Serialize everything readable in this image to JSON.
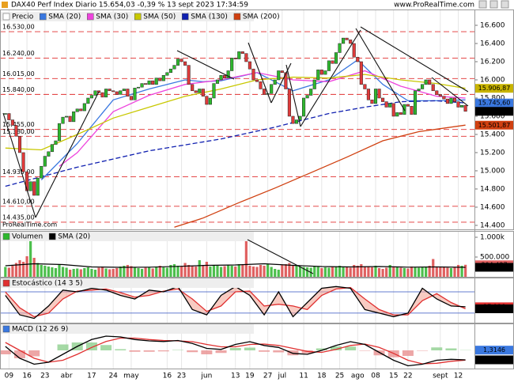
{
  "header": {
    "title": "DAX40 Perf Index Diario 15.654,03 -0,39 % 13 sept 2023 17:34:59",
    "site": "www.ProRealTime.com"
  },
  "chart_data": [
    {
      "type": "candlestick",
      "watermark": "ProRealTime.com",
      "xlim": [
        -1.5,
        130.5
      ],
      "xticks": [
        {
          "value": 1,
          "label": "09"
        },
        {
          "value": 6,
          "label": "16"
        },
        {
          "value": 11,
          "label": "23"
        },
        {
          "value": 17,
          "label": "abr"
        },
        {
          "value": 24,
          "label": "17"
        },
        {
          "value": 30,
          "label": "24"
        },
        {
          "value": 35,
          "label": "may"
        },
        {
          "value": 45,
          "label": "16"
        },
        {
          "value": 49,
          "label": "23"
        },
        {
          "value": 56,
          "label": "jun"
        },
        {
          "value": 64,
          "label": "13"
        },
        {
          "value": 68,
          "label": "19"
        },
        {
          "value": 73,
          "label": "27"
        },
        {
          "value": 77,
          "label": "jul"
        },
        {
          "value": 83,
          "label": "11"
        },
        {
          "value": 88,
          "label": "18"
        },
        {
          "value": 93,
          "label": "25"
        },
        {
          "value": 98,
          "label": "ago"
        },
        {
          "value": 103,
          "label": "08"
        },
        {
          "value": 108,
          "label": "15"
        },
        {
          "value": 112,
          "label": "22"
        },
        {
          "value": 121,
          "label": "sept"
        },
        {
          "value": 126,
          "label": "12"
        }
      ],
      "ylim": [
        14356,
        16774
      ],
      "yticks": [
        {
          "value": 16600,
          "label": "16.600"
        },
        {
          "value": 16400,
          "label": "16.400"
        },
        {
          "value": 16200,
          "label": "16.200"
        },
        {
          "value": 16000,
          "label": "16.000"
        },
        {
          "value": 15800,
          "label": "15.800"
        },
        {
          "value": 15600,
          "label": "15.600"
        },
        {
          "value": 15400,
          "label": "15.400"
        },
        {
          "value": 15200,
          "label": "15.200"
        },
        {
          "value": 15000,
          "label": "15.000"
        },
        {
          "value": 14800,
          "label": "14.800"
        },
        {
          "value": 14600,
          "label": "14.600"
        },
        {
          "value": 14400,
          "label": "14.400"
        }
      ],
      "grid": true,
      "level_color": "#e03030",
      "levels": [
        {
          "value": 16530,
          "label": "16.530,00"
        },
        {
          "value": 16240,
          "label": "16.240,00"
        },
        {
          "value": 16015,
          "label": "16.015,00"
        },
        {
          "value": 15840,
          "label": "15.840,00"
        },
        {
          "value": 15455,
          "label": "15.455,00"
        },
        {
          "value": 15380,
          "label": "15.380,00"
        },
        {
          "value": 14935,
          "label": "14.935,00"
        },
        {
          "value": 14610,
          "label": "14.610,00"
        },
        {
          "value": 14435,
          "label": "14.435,00"
        }
      ],
      "series": [
        {
          "name": "Precio",
          "color": "#ffffff",
          "up_color": "#2eb82e",
          "down_color": "#e03a3a",
          "values": [
            15630,
            15560,
            15500,
            15380,
            15200,
            14990,
            14780,
            14880,
            14730,
            14920,
            15050,
            15160,
            15210,
            15290,
            15330,
            15520,
            15590,
            15600,
            15540,
            15650,
            15680,
            15660,
            15740,
            15800,
            15830,
            15880,
            15860,
            15810,
            15900,
            15880,
            15870,
            15840,
            15880,
            15900,
            15820,
            15780,
            15910,
            15920,
            15960,
            15950,
            15990,
            15950,
            16020,
            15990,
            16050,
            16080,
            16120,
            16160,
            16230,
            16200,
            16160,
            15950,
            15880,
            15860,
            15900,
            15820,
            15730,
            15800,
            15960,
            16000,
            16050,
            16020,
            16100,
            16240,
            16230,
            16310,
            16290,
            16200,
            16120,
            16000,
            15980,
            15900,
            15840,
            15850,
            15950,
            16000,
            16100,
            16080,
            15900,
            15600,
            15520,
            15560,
            15600,
            15800,
            15830,
            15900,
            16000,
            16110,
            16060,
            16100,
            16210,
            16180,
            16300,
            16400,
            16460,
            16440,
            16400,
            16250,
            16200,
            15950,
            15900,
            15780,
            15740,
            15900,
            15800,
            15760,
            15700,
            15740,
            15600,
            15640,
            15620,
            15730,
            15710,
            15620,
            15880,
            15900,
            15950,
            16000,
            15950,
            15880,
            15840,
            15820,
            15790,
            15740,
            15800,
            15760,
            15700,
            15720,
            15654
          ]
        },
        {
          "name": "SMA (20)",
          "color": "#3a78e0",
          "x": [
            10,
            20,
            30,
            40,
            50,
            55,
            60,
            70,
            80,
            90,
            98,
            105,
            112,
            120,
            128
          ],
          "values": [
            14900,
            15300,
            15780,
            15900,
            16000,
            15980,
            15990,
            16080,
            15880,
            16000,
            16220,
            15950,
            15770,
            15770,
            15780
          ]
        },
        {
          "name": "SMA (30)",
          "color": "#ee44dd",
          "x": [
            15,
            20,
            30,
            40,
            50,
            60,
            70,
            80,
            90,
            100,
            110,
            120,
            128
          ],
          "values": [
            15050,
            15200,
            15650,
            15830,
            15950,
            16000,
            16080,
            16000,
            15980,
            16100,
            15930,
            15820,
            15800
          ]
        },
        {
          "name": "SMA (50)",
          "color": "#c8c800",
          "x": [
            0,
            10,
            20,
            30,
            40,
            50,
            60,
            70,
            80,
            90,
            100,
            110,
            120,
            128
          ],
          "values": [
            15250,
            15230,
            15400,
            15580,
            15700,
            15820,
            15900,
            16000,
            16030,
            16020,
            16060,
            16000,
            15960,
            15907
          ]
        },
        {
          "name": "SMA (130)",
          "color": "#1020b0",
          "dash": true,
          "x": [
            0,
            20,
            40,
            60,
            75,
            90,
            100,
            110,
            120,
            128
          ],
          "values": [
            14830,
            15040,
            15220,
            15350,
            15480,
            15630,
            15700,
            15760,
            15770,
            15746
          ]
        },
        {
          "name": "SMA (200)",
          "color": "#d04010",
          "x": [
            47,
            55,
            65,
            75,
            85,
            95,
            105,
            115,
            128
          ],
          "values": [
            14380,
            14480,
            14650,
            14810,
            14980,
            15150,
            15330,
            15430,
            15502
          ]
        }
      ],
      "last_labels": [
        {
          "value": 15906.87,
          "label": "15.906,87",
          "color": "#c8b400"
        },
        {
          "value": 15745.6,
          "label": "15.745,60",
          "color": "#3a78e0"
        },
        {
          "value": 15654.03,
          "label": "15.654,03",
          "color": "#000000"
        },
        {
          "value": 15501.87,
          "label": "15.501,87",
          "color": "#d04010"
        }
      ]
    },
    {
      "type": "volume",
      "ylim": [
        0,
        1140000
      ],
      "yticks": [
        {
          "value": 1000000,
          "label": "1.000k"
        },
        {
          "value": 500000,
          "label": "500.000"
        }
      ],
      "series": [
        {
          "name": "Volumen",
          "color": "#2eb82e",
          "up_color": "#4cbf4c",
          "down_color": "#e06060",
          "values": [
            250000,
            230000,
            280000,
            350000,
            420000,
            380000,
            520000,
            900000,
            480000,
            350000,
            300000,
            280000,
            260000,
            240000,
            220000,
            300000,
            250000,
            230000,
            180000,
            200000,
            210000,
            190000,
            220000,
            240000,
            200000,
            180000,
            230000,
            250000,
            210000,
            190000,
            200000,
            220000,
            260000,
            280000,
            300000,
            270000,
            240000,
            220000,
            200000,
            230000,
            250000,
            210000,
            260000,
            280000,
            240000,
            230000,
            300000,
            320000,
            280000,
            260000,
            350000,
            300000,
            280000,
            260000,
            420000,
            300000,
            380000,
            260000,
            300000,
            280000,
            250000,
            270000,
            300000,
            280000,
            260000,
            320000,
            300000,
            950000,
            280000,
            260000,
            250000,
            300000,
            280000,
            320000,
            250000,
            200000,
            180000,
            300000,
            320000,
            350000,
            300000,
            280000,
            260000,
            250000,
            240000,
            230000,
            260000,
            250000,
            220000,
            240000,
            230000,
            250000,
            260000,
            280000,
            240000,
            250000,
            230000,
            300000,
            280000,
            320000,
            260000,
            250000,
            240000,
            280000,
            220000,
            200000,
            230000,
            300000,
            250000,
            240000,
            230000,
            220000,
            210000,
            260000,
            240000,
            230000,
            250000,
            260000,
            280000,
            450000,
            260000,
            250000,
            240000,
            230000,
            220000,
            250000,
            300000,
            280000,
            304437
          ]
        },
        {
          "name": "SMA (20)",
          "color": "#000000",
          "x": [
            0,
            8,
            16,
            24,
            32,
            40,
            48,
            56,
            64,
            72,
            80,
            88,
            96,
            104,
            112,
            120,
            128
          ],
          "values": [
            280000,
            330000,
            310000,
            250000,
            240000,
            245000,
            265000,
            290000,
            300000,
            330000,
            290000,
            260000,
            250000,
            260000,
            245000,
            250000,
            240719
          ]
        }
      ],
      "last_labels": [
        {
          "value": 304437,
          "label": "304.437",
          "color": "#e06060"
        },
        {
          "value": 240719,
          "label": "240.719",
          "color": "#000000"
        }
      ]
    },
    {
      "type": "stochastic",
      "title": "Estocástico (14 3 5)",
      "ylim": [
        -7,
        118
      ],
      "levels": [
        80,
        20
      ],
      "level_color": "#3050c0",
      "fill_color": "#f2a090",
      "series": [
        {
          "color": "#000000",
          "x": [
            0,
            4,
            8,
            12,
            16,
            20,
            24,
            28,
            32,
            36,
            40,
            44,
            48,
            52,
            56,
            60,
            64,
            68,
            72,
            76,
            80,
            84,
            88,
            92,
            96,
            100,
            104,
            108,
            112,
            116,
            120,
            124,
            128
          ],
          "values": [
            70,
            15,
            5,
            40,
            85,
            80,
            90,
            85,
            70,
            60,
            85,
            80,
            95,
            30,
            15,
            70,
            95,
            70,
            15,
            80,
            10,
            50,
            90,
            95,
            90,
            30,
            20,
            10,
            20,
            90,
            60,
            40,
            37.936
          ]
        },
        {
          "color": "#e03030",
          "x": [
            0,
            4,
            8,
            12,
            16,
            20,
            24,
            28,
            32,
            36,
            40,
            44,
            48,
            52,
            56,
            60,
            64,
            68,
            72,
            76,
            80,
            84,
            88,
            92,
            96,
            100,
            104,
            108,
            112,
            116,
            120,
            124,
            128
          ],
          "values": [
            80,
            35,
            10,
            20,
            60,
            82,
            85,
            88,
            78,
            65,
            70,
            82,
            88,
            60,
            25,
            40,
            80,
            82,
            40,
            45,
            40,
            30,
            70,
            88,
            92,
            60,
            30,
            15,
            15,
            55,
            75,
            50,
            32.18
          ]
        }
      ],
      "last_labels": [
        {
          "value": 37.936,
          "label": "37,936",
          "color": "#e03030"
        },
        {
          "value": 32.18,
          "label": "32,180",
          "color": "#000000"
        }
      ]
    },
    {
      "type": "macd",
      "title": "MACD (12 26 9)",
      "ylim": [
        -92,
        132
      ],
      "hist_up_color": "#8fd08f",
      "hist_down_color": "#e89090",
      "x": [
        0,
        4,
        8,
        12,
        16,
        20,
        24,
        28,
        32,
        36,
        40,
        44,
        48,
        52,
        56,
        60,
        64,
        68,
        72,
        76,
        80,
        84,
        88,
        92,
        96,
        100,
        104,
        108,
        112,
        116,
        120,
        124,
        128
      ],
      "histogram": [
        -20,
        -40,
        -30,
        0,
        30,
        40,
        40,
        27,
        6,
        -7,
        -7,
        -5,
        2,
        -9,
        -20,
        -13,
        12,
        14,
        -7,
        -10,
        -25,
        -15,
        10,
        20,
        19,
        -2,
        -25,
        -35,
        -28,
        -2,
        15,
        10,
        1.3146
      ],
      "series": [
        {
          "color": "#000000",
          "values": [
            20,
            -40,
            -70,
            -60,
            -20,
            20,
            55,
            72,
            68,
            55,
            48,
            45,
            50,
            35,
            10,
            5,
            30,
            44,
            25,
            15,
            -15,
            -20,
            0,
            25,
            44,
            30,
            -10,
            -50,
            -78,
            -70,
            -50,
            -45,
            -48.004
          ]
        },
        {
          "color": "#e03030",
          "values": [
            40,
            0,
            -40,
            -60,
            -50,
            -20,
            15,
            45,
            62,
            62,
            55,
            50,
            48,
            44,
            30,
            18,
            18,
            30,
            32,
            25,
            10,
            -5,
            -10,
            5,
            25,
            32,
            15,
            -15,
            -50,
            -68,
            -65,
            -55,
            -49.32
          ]
        }
      ],
      "last_labels": [
        {
          "value": 1.3146,
          "label": "1,3146",
          "color": "#3a78e0"
        },
        {
          "value": -48.004,
          "label": "-48,004",
          "color": "#000000"
        }
      ]
    }
  ]
}
